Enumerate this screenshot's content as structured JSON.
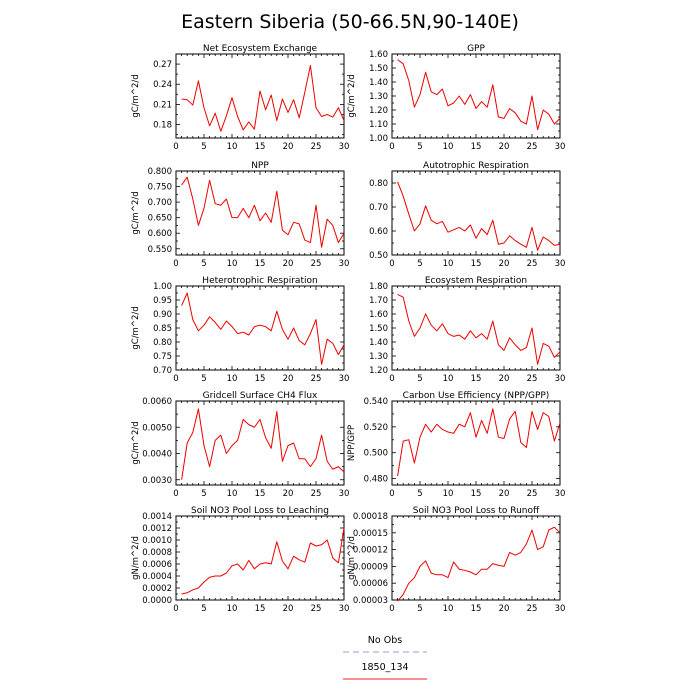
{
  "page": {
    "title": "Eastern Siberia (50-66.5N,90-140E)"
  },
  "legend": [
    {
      "label": "No Obs",
      "color": "#9999ee",
      "dash": true
    },
    {
      "label": "1850_134",
      "color": "#ee2222",
      "dash": false
    }
  ],
  "chart_data": [
    {
      "type": "line",
      "title": "Net Ecosystem Exchange",
      "xlabel": "",
      "ylabel": "gC/m^2/d",
      "xlim": [
        0,
        30
      ],
      "ylim": [
        0.16,
        0.285
      ],
      "xticks": [
        0,
        5,
        10,
        15,
        20,
        25,
        30
      ],
      "yticks": [
        0.18,
        0.21,
        0.24,
        0.27
      ],
      "ytick_labels": [
        "0.18",
        "0.21",
        "0.24",
        "0.27"
      ],
      "series": [
        {
          "color": "#ee0000",
          "x": [
            1,
            2,
            3,
            4,
            5,
            6,
            7,
            8,
            9,
            10,
            11,
            12,
            13,
            14,
            15,
            16,
            17,
            18,
            19,
            20,
            21,
            22,
            23,
            24,
            25,
            26,
            27,
            28,
            29,
            30
          ],
          "y": [
            0.218,
            0.217,
            0.209,
            0.245,
            0.205,
            0.178,
            0.197,
            0.17,
            0.193,
            0.22,
            0.192,
            0.172,
            0.184,
            0.173,
            0.23,
            0.202,
            0.224,
            0.186,
            0.218,
            0.198,
            0.217,
            0.19,
            0.228,
            0.268,
            0.205,
            0.192,
            0.195,
            0.191,
            0.205,
            0.186
          ]
        }
      ]
    },
    {
      "type": "line",
      "title": "GPP",
      "xlabel": "",
      "ylabel": "gC/m^2/d",
      "xlim": [
        0,
        30
      ],
      "ylim": [
        1.0,
        1.6
      ],
      "xticks": [
        0,
        5,
        10,
        15,
        20,
        25,
        30
      ],
      "yticks": [
        1.0,
        1.1,
        1.2,
        1.3,
        1.4,
        1.5,
        1.6
      ],
      "ytick_labels": [
        "1.00",
        "1.10",
        "1.20",
        "1.30",
        "1.40",
        "1.50",
        "1.60"
      ],
      "series": [
        {
          "color": "#ee0000",
          "x": [
            1,
            2,
            3,
            4,
            5,
            6,
            7,
            8,
            9,
            10,
            11,
            12,
            13,
            14,
            15,
            16,
            17,
            18,
            19,
            20,
            21,
            22,
            23,
            24,
            25,
            26,
            27,
            28,
            29,
            30
          ],
          "y": [
            1.56,
            1.53,
            1.41,
            1.22,
            1.31,
            1.47,
            1.33,
            1.31,
            1.35,
            1.23,
            1.25,
            1.3,
            1.24,
            1.31,
            1.21,
            1.26,
            1.22,
            1.38,
            1.15,
            1.14,
            1.21,
            1.18,
            1.12,
            1.1,
            1.3,
            1.06,
            1.2,
            1.17,
            1.1,
            1.14
          ]
        }
      ]
    },
    {
      "type": "line",
      "title": "NPP",
      "xlabel": "",
      "ylabel": "gC/m^2/d",
      "xlim": [
        0,
        30
      ],
      "ylim": [
        0.53,
        0.8
      ],
      "xticks": [
        0,
        5,
        10,
        15,
        20,
        25,
        30
      ],
      "yticks": [
        0.55,
        0.6,
        0.65,
        0.7,
        0.75,
        0.8
      ],
      "ytick_labels": [
        "0.550",
        "0.600",
        "0.650",
        "0.700",
        "0.750",
        "0.800"
      ],
      "series": [
        {
          "color": "#ee0000",
          "x": [
            1,
            2,
            3,
            4,
            5,
            6,
            7,
            8,
            9,
            10,
            11,
            12,
            13,
            14,
            15,
            16,
            17,
            18,
            19,
            20,
            21,
            22,
            23,
            24,
            25,
            26,
            27,
            28,
            29,
            30
          ],
          "y": [
            0.755,
            0.78,
            0.71,
            0.625,
            0.68,
            0.77,
            0.695,
            0.69,
            0.71,
            0.65,
            0.65,
            0.68,
            0.65,
            0.69,
            0.64,
            0.665,
            0.635,
            0.735,
            0.61,
            0.595,
            0.635,
            0.63,
            0.578,
            0.57,
            0.69,
            0.555,
            0.645,
            0.625,
            0.57,
            0.6
          ]
        }
      ]
    },
    {
      "type": "line",
      "title": "Autotrophic Respiration",
      "xlabel": "",
      "ylabel": "",
      "xlim": [
        0,
        30
      ],
      "ylim": [
        0.5,
        0.85
      ],
      "xticks": [
        0,
        5,
        10,
        15,
        20,
        25,
        30
      ],
      "yticks": [
        0.5,
        0.6,
        0.7,
        0.8
      ],
      "ytick_labels": [
        "0.50",
        "0.60",
        "0.70",
        "0.80"
      ],
      "series": [
        {
          "color": "#ee0000",
          "x": [
            1,
            2,
            3,
            4,
            5,
            6,
            7,
            8,
            9,
            10,
            11,
            12,
            13,
            14,
            15,
            16,
            17,
            18,
            19,
            20,
            21,
            22,
            23,
            24,
            25,
            26,
            27,
            28,
            29,
            30
          ],
          "y": [
            0.805,
            0.745,
            0.67,
            0.6,
            0.63,
            0.705,
            0.645,
            0.63,
            0.64,
            0.595,
            0.605,
            0.615,
            0.6,
            0.625,
            0.57,
            0.61,
            0.585,
            0.645,
            0.545,
            0.55,
            0.58,
            0.56,
            0.545,
            0.532,
            0.615,
            0.52,
            0.575,
            0.56,
            0.54,
            0.545
          ]
        }
      ]
    },
    {
      "type": "line",
      "title": "Heterotrophic Respiration",
      "xlabel": "",
      "ylabel": "gC/m^2/d",
      "xlim": [
        0,
        30
      ],
      "ylim": [
        0.7,
        1.0
      ],
      "xticks": [
        0,
        5,
        10,
        15,
        20,
        25,
        30
      ],
      "yticks": [
        0.7,
        0.75,
        0.8,
        0.85,
        0.9,
        0.95,
        1.0
      ],
      "ytick_labels": [
        "0.70",
        "0.75",
        "0.80",
        "0.85",
        "0.90",
        "0.95",
        "1.00"
      ],
      "series": [
        {
          "color": "#ee0000",
          "x": [
            1,
            2,
            3,
            4,
            5,
            6,
            7,
            8,
            9,
            10,
            11,
            12,
            13,
            14,
            15,
            16,
            17,
            18,
            19,
            20,
            21,
            22,
            23,
            24,
            25,
            26,
            27,
            28,
            29,
            30
          ],
          "y": [
            0.93,
            0.975,
            0.88,
            0.84,
            0.86,
            0.89,
            0.87,
            0.845,
            0.875,
            0.855,
            0.83,
            0.835,
            0.825,
            0.855,
            0.86,
            0.855,
            0.84,
            0.91,
            0.845,
            0.81,
            0.85,
            0.805,
            0.79,
            0.83,
            0.88,
            0.72,
            0.81,
            0.795,
            0.755,
            0.79
          ]
        }
      ]
    },
    {
      "type": "line",
      "title": "Ecosystem Respiration",
      "xlabel": "",
      "ylabel": "",
      "xlim": [
        0,
        30
      ],
      "ylim": [
        1.2,
        1.8
      ],
      "xticks": [
        0,
        5,
        10,
        15,
        20,
        25,
        30
      ],
      "yticks": [
        1.2,
        1.3,
        1.4,
        1.5,
        1.6,
        1.7,
        1.8
      ],
      "ytick_labels": [
        "1.20",
        "1.30",
        "1.40",
        "1.50",
        "1.60",
        "1.70",
        "1.80"
      ],
      "series": [
        {
          "color": "#ee0000",
          "x": [
            1,
            2,
            3,
            4,
            5,
            6,
            7,
            8,
            9,
            10,
            11,
            12,
            13,
            14,
            15,
            16,
            17,
            18,
            19,
            20,
            21,
            22,
            23,
            24,
            25,
            26,
            27,
            28,
            29,
            30
          ],
          "y": [
            1.74,
            1.72,
            1.55,
            1.44,
            1.5,
            1.6,
            1.52,
            1.48,
            1.53,
            1.46,
            1.44,
            1.45,
            1.42,
            1.48,
            1.43,
            1.46,
            1.42,
            1.55,
            1.38,
            1.34,
            1.43,
            1.38,
            1.34,
            1.36,
            1.5,
            1.24,
            1.39,
            1.37,
            1.29,
            1.33
          ]
        }
      ]
    },
    {
      "type": "line",
      "title": "Gridcell Surface CH4 Flux",
      "xlabel": "",
      "ylabel": "gC/m^2/d",
      "xlim": [
        0,
        30
      ],
      "ylim": [
        0.0028,
        0.006
      ],
      "xticks": [
        0,
        5,
        10,
        15,
        20,
        25,
        30
      ],
      "yticks": [
        0.003,
        0.004,
        0.005,
        0.006
      ],
      "ytick_labels": [
        "0.0030",
        "0.0040",
        "0.0050",
        "0.0060"
      ],
      "series": [
        {
          "color": "#ee0000",
          "x": [
            1,
            2,
            3,
            4,
            5,
            6,
            7,
            8,
            9,
            10,
            11,
            12,
            13,
            14,
            15,
            16,
            17,
            18,
            19,
            20,
            21,
            22,
            23,
            24,
            25,
            26,
            27,
            28,
            29,
            30
          ],
          "y": [
            0.003,
            0.0044,
            0.0048,
            0.0057,
            0.0043,
            0.0035,
            0.0045,
            0.0047,
            0.004,
            0.0043,
            0.0045,
            0.0053,
            0.0051,
            0.005,
            0.0053,
            0.0046,
            0.0042,
            0.0056,
            0.0037,
            0.0043,
            0.0044,
            0.0038,
            0.0038,
            0.0035,
            0.0038,
            0.0047,
            0.0037,
            0.0034,
            0.0035,
            0.0033
          ]
        }
      ]
    },
    {
      "type": "line",
      "title": "Carbon Use Efficiency (NPP/GPP)",
      "xlabel": "",
      "ylabel": "NPP/GPP",
      "xlim": [
        0,
        30
      ],
      "ylim": [
        0.475,
        0.54
      ],
      "xticks": [
        0,
        5,
        10,
        15,
        20,
        25,
        30
      ],
      "yticks": [
        0.48,
        0.5,
        0.52,
        0.54
      ],
      "ytick_labels": [
        "0.480",
        "0.500",
        "0.520",
        "0.540"
      ],
      "series": [
        {
          "color": "#ee0000",
          "x": [
            1,
            2,
            3,
            4,
            5,
            6,
            7,
            8,
            9,
            10,
            11,
            12,
            13,
            14,
            15,
            16,
            17,
            18,
            19,
            20,
            21,
            22,
            23,
            24,
            25,
            26,
            27,
            28,
            29,
            30
          ],
          "y": [
            0.482,
            0.509,
            0.51,
            0.492,
            0.512,
            0.522,
            0.516,
            0.522,
            0.518,
            0.516,
            0.515,
            0.522,
            0.52,
            0.531,
            0.512,
            0.525,
            0.515,
            0.534,
            0.512,
            0.511,
            0.526,
            0.532,
            0.508,
            0.504,
            0.532,
            0.518,
            0.531,
            0.528,
            0.509,
            0.523
          ]
        }
      ]
    },
    {
      "type": "line",
      "title": "Soil NO3 Pool Loss to Leaching",
      "xlabel": "",
      "ylabel": "gN/m^2/d",
      "xlim": [
        0,
        30
      ],
      "ylim": [
        0,
        0.0014
      ],
      "xticks": [
        0,
        5,
        10,
        15,
        20,
        25,
        30
      ],
      "yticks": [
        0,
        0.0002,
        0.0004,
        0.0006,
        0.0008,
        0.001,
        0.0012,
        0.0014
      ],
      "ytick_labels": [
        "0.0000",
        "0.0002",
        "0.0004",
        "0.0006",
        "0.0008",
        "0.0010",
        "0.0012",
        "0.0014"
      ],
      "series": [
        {
          "color": "#ee0000",
          "x": [
            1,
            2,
            3,
            4,
            5,
            6,
            7,
            8,
            9,
            10,
            11,
            12,
            13,
            14,
            15,
            16,
            17,
            18,
            19,
            20,
            21,
            22,
            23,
            24,
            25,
            26,
            27,
            28,
            29,
            30
          ],
          "y": [
            0.0001,
            0.00012,
            0.00017,
            0.0002,
            0.0003,
            0.00038,
            0.0004,
            0.0004,
            0.00045,
            0.00057,
            0.0006,
            0.0005,
            0.00066,
            0.00052,
            0.0006,
            0.00062,
            0.0006,
            0.00097,
            0.00065,
            0.00052,
            0.00073,
            0.00067,
            0.00063,
            0.00095,
            0.0009,
            0.00092,
            0.001,
            0.0007,
            0.00062,
            0.0012
          ]
        }
      ]
    },
    {
      "type": "line",
      "title": "Soil NO3 Pool Loss to Runoff",
      "xlabel": "",
      "ylabel": "gN/m^2/d",
      "xlim": [
        0,
        30
      ],
      "ylim": [
        3e-05,
        0.00018
      ],
      "xticks": [
        0,
        5,
        10,
        15,
        20,
        25,
        30
      ],
      "yticks": [
        3e-05,
        6e-05,
        9e-05,
        0.00012,
        0.00015,
        0.00018
      ],
      "ytick_labels": [
        "0.00003",
        "0.00006",
        "0.00009",
        "0.00012",
        "0.00015",
        "0.00018"
      ],
      "series": [
        {
          "color": "#ee0000",
          "x": [
            1,
            2,
            3,
            4,
            5,
            6,
            7,
            8,
            9,
            10,
            11,
            12,
            13,
            14,
            15,
            16,
            17,
            18,
            19,
            20,
            21,
            22,
            23,
            24,
            25,
            26,
            27,
            28,
            29,
            30
          ],
          "y": [
            2.8e-05,
            4e-05,
            6e-05,
            7e-05,
            9e-05,
            0.0001,
            7.8e-05,
            7.5e-05,
            7.5e-05,
            7e-05,
            9.8e-05,
            8.5e-05,
            8.3e-05,
            8e-05,
            7.5e-05,
            8.5e-05,
            8.5e-05,
            9.5e-05,
            9.2e-05,
            9e-05,
            0.000115,
            0.00011,
            0.000115,
            0.00013,
            0.000155,
            0.00012,
            0.000125,
            0.000155,
            0.00016,
            0.00015
          ]
        }
      ]
    }
  ]
}
